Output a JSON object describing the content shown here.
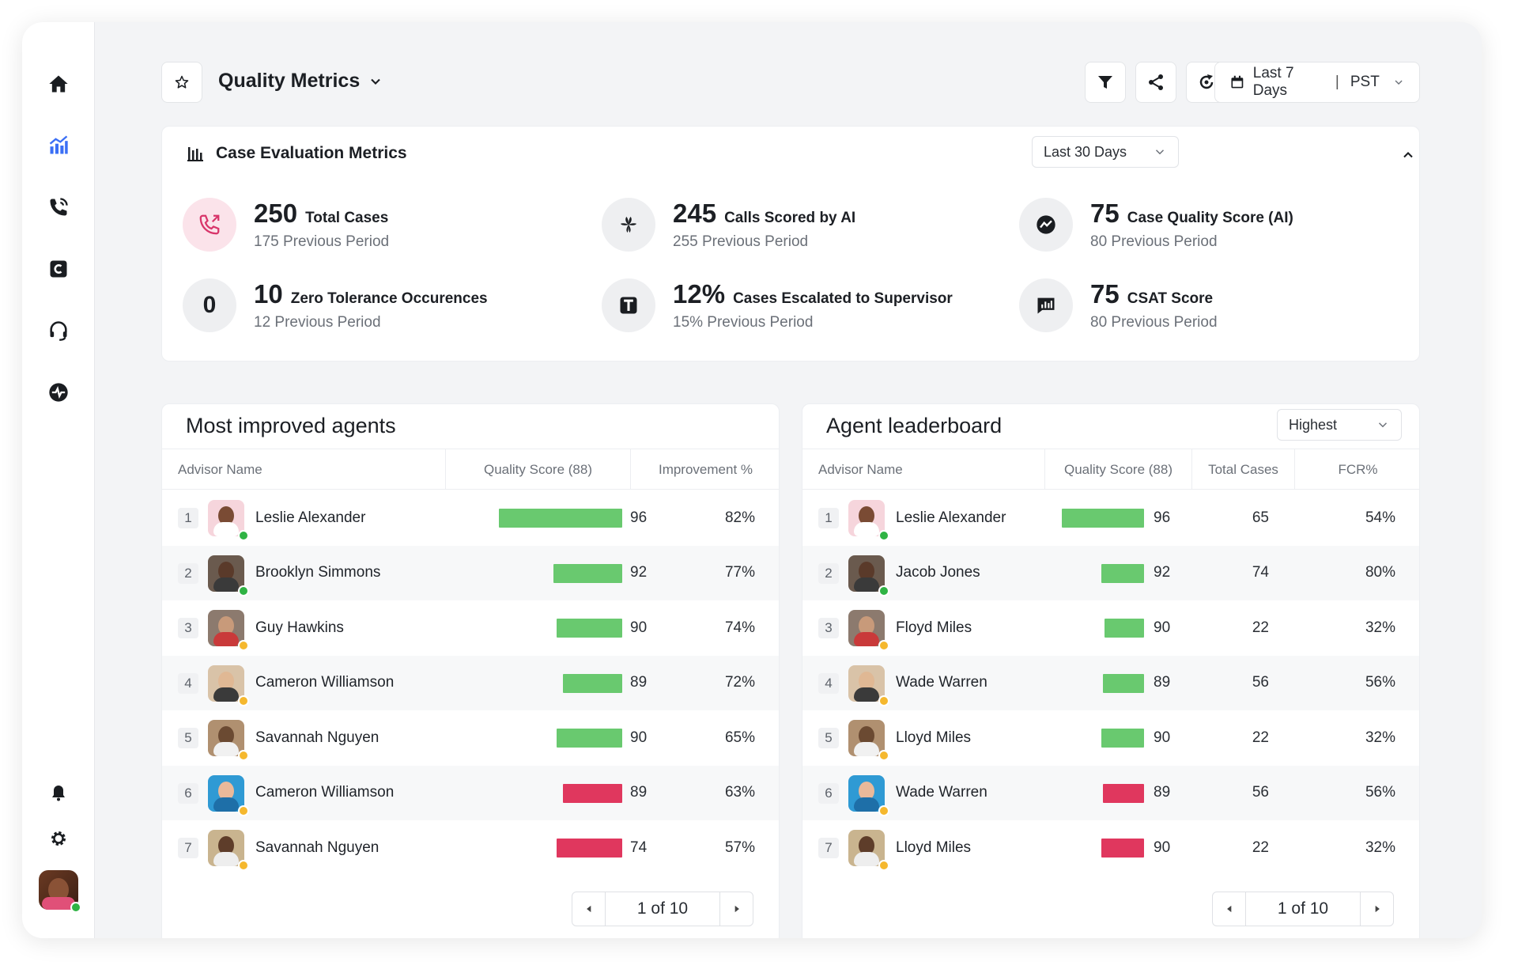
{
  "colors": {
    "good": "#69c96f",
    "bad": "#e0375e",
    "online": "#2fb344",
    "away": "#f5b82e"
  },
  "header": {
    "title": "Quality Metrics",
    "range": "Last 7 Days",
    "separator": "|",
    "timezone": "PST"
  },
  "metrics_card": {
    "title": "Case Evaluation Metrics",
    "period": "Last 30 Days",
    "items": [
      {
        "value": "250",
        "label": "Total Cases",
        "previous": "175 Previous Period",
        "icon": "phone-icon"
      },
      {
        "value": "245",
        "label": "Calls Scored by AI",
        "previous": "255 Previous Period",
        "icon": "sprinklr-icon"
      },
      {
        "value": "75",
        "label": "Case Quality Score (AI)",
        "previous": "80 Previous Period",
        "icon": "quality-score-icon"
      },
      {
        "value": "10",
        "label": "Zero Tolerance Occurences",
        "previous": "12 Previous Period",
        "icon_text": "0"
      },
      {
        "value": "12%",
        "label": "Cases Escalated to Supervisor",
        "previous": "15% Previous Period",
        "icon": "escalation-icon"
      },
      {
        "value": "75",
        "label": "CSAT Score",
        "previous": "80 Previous Period",
        "icon": "csat-chat-icon"
      }
    ]
  },
  "improved": {
    "title": "Most improved agents",
    "columns": [
      "Advisor Name",
      "Quality Score (88)",
      "Improvement %"
    ],
    "rows": [
      {
        "rank": "1",
        "name": "Leslie Alexander",
        "score": "96",
        "improvement": "82%",
        "status": "online",
        "bar": "good",
        "bar_frac": 1.0
      },
      {
        "rank": "2",
        "name": "Brooklyn Simmons",
        "score": "92",
        "improvement": "77%",
        "status": "online",
        "bar": "good",
        "bar_frac": 0.56
      },
      {
        "rank": "3",
        "name": "Guy Hawkins",
        "score": "90",
        "improvement": "74%",
        "status": "away",
        "bar": "good",
        "bar_frac": 0.53
      },
      {
        "rank": "4",
        "name": "Cameron Williamson",
        "score": "89",
        "improvement": "72%",
        "status": "away",
        "bar": "good",
        "bar_frac": 0.48
      },
      {
        "rank": "5",
        "name": "Savannah Nguyen",
        "score": "90",
        "improvement": "65%",
        "status": "away",
        "bar": "good",
        "bar_frac": 0.53
      },
      {
        "rank": "6",
        "name": "Cameron Williamson",
        "score": "89",
        "improvement": "63%",
        "status": "away",
        "bar": "bad",
        "bar_frac": 0.48
      },
      {
        "rank": "7",
        "name": "Savannah Nguyen",
        "score": "74",
        "improvement": "57%",
        "status": "away",
        "bar": "bad",
        "bar_frac": 0.53
      }
    ],
    "pager": "1 of 10"
  },
  "leaderboard": {
    "title": "Agent leaderboard",
    "sort": "Highest",
    "columns": [
      "Advisor Name",
      "Quality Score (88)",
      "Total Cases",
      "FCR%"
    ],
    "rows": [
      {
        "rank": "1",
        "name": "Leslie Alexander",
        "score": "96",
        "cases": "65",
        "fcr": "54%",
        "status": "online",
        "bar": "good",
        "bar_frac": 1.0
      },
      {
        "rank": "2",
        "name": "Jacob Jones",
        "score": "92",
        "cases": "74",
        "fcr": "80%",
        "status": "online",
        "bar": "good",
        "bar_frac": 0.52
      },
      {
        "rank": "3",
        "name": "Floyd Miles",
        "score": "90",
        "cases": "22",
        "fcr": "32%",
        "status": "away",
        "bar": "good",
        "bar_frac": 0.48
      },
      {
        "rank": "4",
        "name": "Wade Warren",
        "score": "89",
        "cases": "56",
        "fcr": "56%",
        "status": "away",
        "bar": "good",
        "bar_frac": 0.5
      },
      {
        "rank": "5",
        "name": "Lloyd Miles",
        "score": "90",
        "cases": "22",
        "fcr": "32%",
        "status": "away",
        "bar": "good",
        "bar_frac": 0.52
      },
      {
        "rank": "6",
        "name": "Wade Warren",
        "score": "89",
        "cases": "56",
        "fcr": "56%",
        "status": "away",
        "bar": "bad",
        "bar_frac": 0.5
      },
      {
        "rank": "7",
        "name": "Lloyd Miles",
        "score": "90",
        "cases": "22",
        "fcr": "32%",
        "status": "away",
        "bar": "bad",
        "bar_frac": 0.52
      }
    ],
    "pager": "1 of 10"
  },
  "sidebar": {
    "icons": [
      "home-icon",
      "analytics-icon",
      "phone-call-icon",
      "case-icon",
      "headset-icon",
      "activity-icon",
      "bell-icon",
      "settings-icon"
    ]
  }
}
